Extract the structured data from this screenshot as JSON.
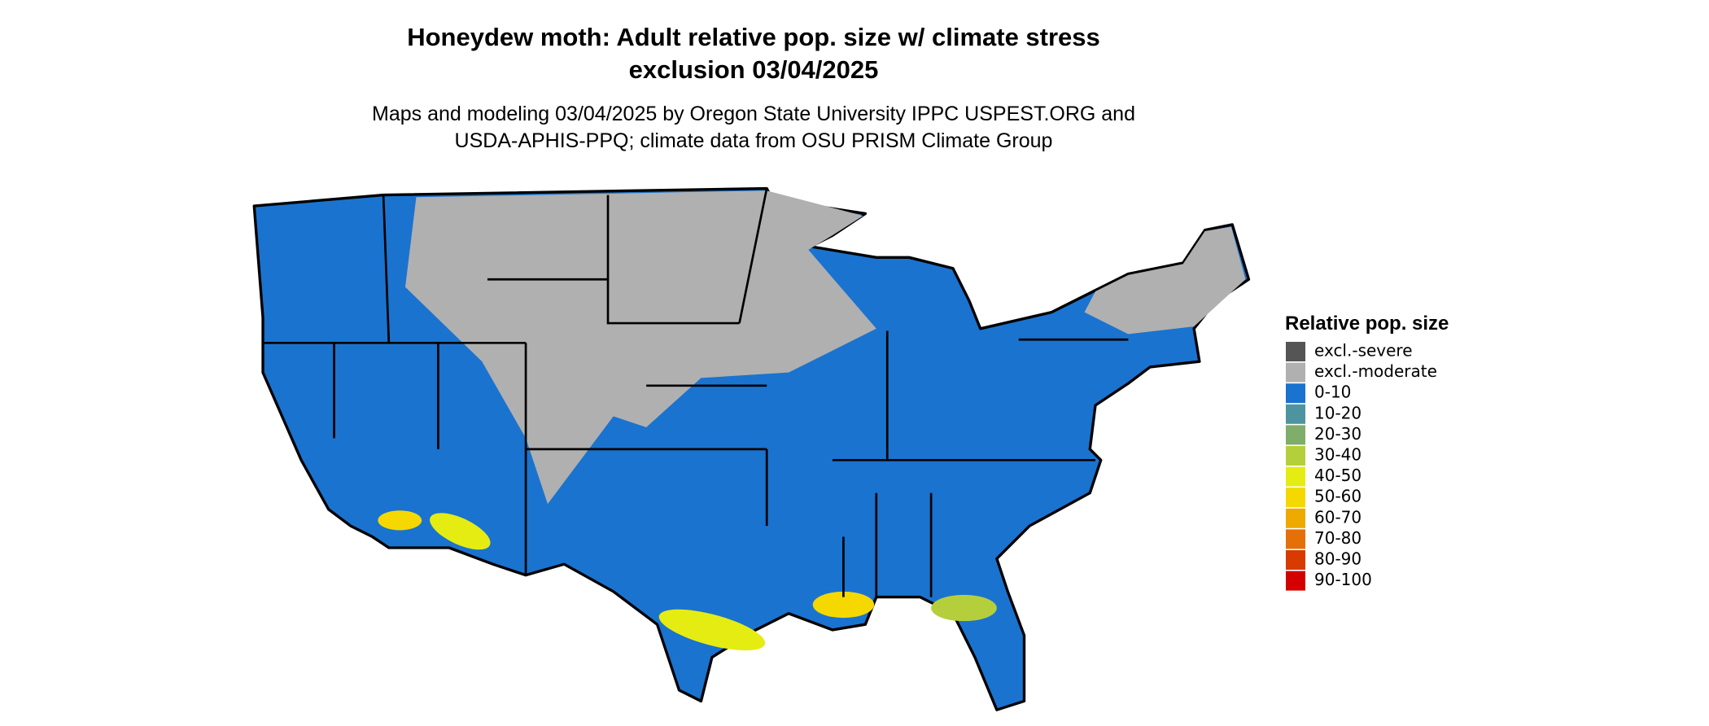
{
  "header": {
    "title_lines": [
      "Honeydew moth: Adult relative pop. size w/ climate stress",
      "exclusion 03/04/2025"
    ],
    "subtitle_lines": [
      "Maps and modeling 03/04/2025 by Oregon State University IPPC USPEST.ORG and",
      "USDA-APHIS-PPQ; climate data from OSU PRISM Climate Group"
    ]
  },
  "legend": {
    "title": "Relative pop. size",
    "items": [
      {
        "label": "excl.-severe",
        "color": "#555555"
      },
      {
        "label": "excl.-moderate",
        "color": "#b0b0b0"
      },
      {
        "label": "0-10",
        "color": "#1a73cf"
      },
      {
        "label": "10-20",
        "color": "#4e94a0"
      },
      {
        "label": "20-30",
        "color": "#7fad6a"
      },
      {
        "label": "30-40",
        "color": "#b5cf3c"
      },
      {
        "label": "40-50",
        "color": "#e5ec12"
      },
      {
        "label": "50-60",
        "color": "#f5d800"
      },
      {
        "label": "60-70",
        "color": "#eeaa00"
      },
      {
        "label": "70-80",
        "color": "#e5700a"
      },
      {
        "label": "80-90",
        "color": "#d83a00"
      },
      {
        "label": "90-100",
        "color": "#d40000"
      }
    ]
  }
}
